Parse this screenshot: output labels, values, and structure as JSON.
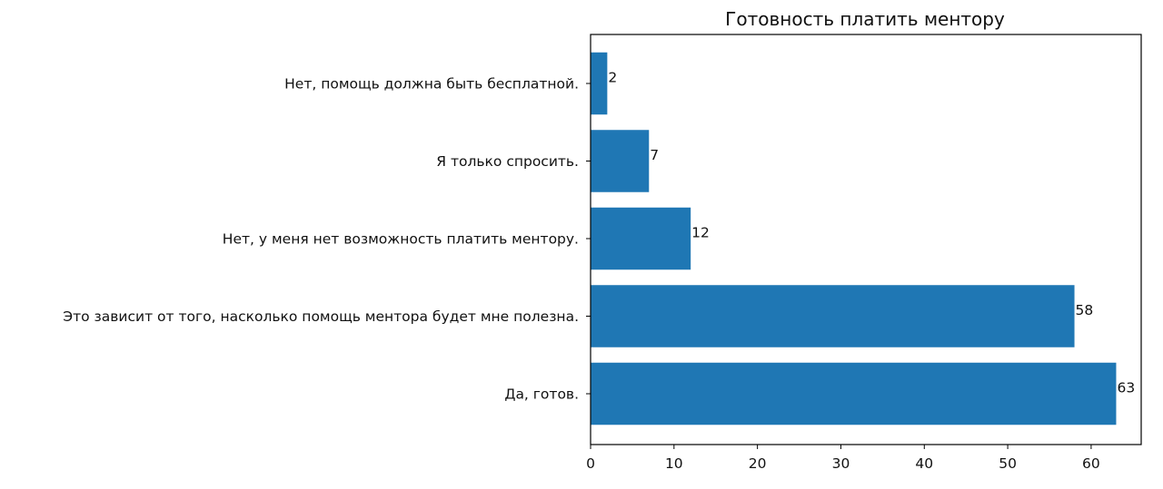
{
  "chart_data": {
    "type": "bar",
    "orientation": "horizontal",
    "title": "Готовность платить ментору",
    "xlabel": "",
    "ylabel": "",
    "xlim": [
      0,
      66
    ],
    "xticks": [
      0,
      10,
      20,
      30,
      40,
      50,
      60
    ],
    "grid": false,
    "bar_color": "#1f77b4",
    "categories": [
      "Да, готов.",
      "Это зависит от того, насколько помощь ментора будет мне полезна.",
      "Нет, у меня нет возможность платить ментору.",
      "Я только спросить.",
      "Нет, помощь должна быть бесплатной."
    ],
    "values": [
      63,
      58,
      12,
      7,
      2
    ],
    "data_labels": [
      "63",
      "58",
      "12",
      "7",
      "2"
    ]
  }
}
